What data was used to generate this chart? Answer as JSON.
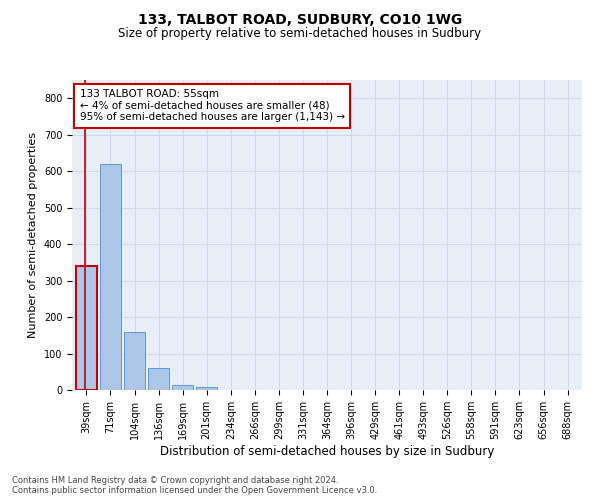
{
  "title": "133, TALBOT ROAD, SUDBURY, CO10 1WG",
  "subtitle": "Size of property relative to semi-detached houses in Sudbury",
  "xlabel": "Distribution of semi-detached houses by size in Sudbury",
  "ylabel": "Number of semi-detached properties",
  "footnote1": "Contains HM Land Registry data © Crown copyright and database right 2024.",
  "footnote2": "Contains public sector information licensed under the Open Government Licence v3.0.",
  "categories": [
    "39sqm",
    "71sqm",
    "104sqm",
    "136sqm",
    "169sqm",
    "201sqm",
    "234sqm",
    "266sqm",
    "299sqm",
    "331sqm",
    "364sqm",
    "396sqm",
    "429sqm",
    "461sqm",
    "493sqm",
    "526sqm",
    "558sqm",
    "591sqm",
    "623sqm",
    "656sqm",
    "688sqm"
  ],
  "values": [
    340,
    620,
    160,
    60,
    14,
    7,
    1,
    0,
    0,
    0,
    0,
    0,
    0,
    0,
    0,
    0,
    0,
    0,
    0,
    0,
    0
  ],
  "bar_color": "#aec6e8",
  "bar_edge_color": "#5b9bd5",
  "highlight_bar_index": 0,
  "highlight_bar_edge_color": "#c00000",
  "annotation_text": "133 TALBOT ROAD: 55sqm\n← 4% of semi-detached houses are smaller (48)\n95% of semi-detached houses are larger (1,143) →",
  "annotation_box_color": "white",
  "annotation_box_edge_color": "#c00000",
  "ylim": [
    0,
    850
  ],
  "yticks": [
    0,
    100,
    200,
    300,
    400,
    500,
    600,
    700,
    800
  ],
  "grid_color": "#d0d8e8",
  "background_color": "#e8eef8",
  "fig_background": "#ffffff",
  "title_fontsize": 10,
  "subtitle_fontsize": 8.5,
  "tick_fontsize": 7,
  "ylabel_fontsize": 8,
  "xlabel_fontsize": 8.5,
  "annotation_fontsize": 7.5,
  "footnote_fontsize": 6
}
